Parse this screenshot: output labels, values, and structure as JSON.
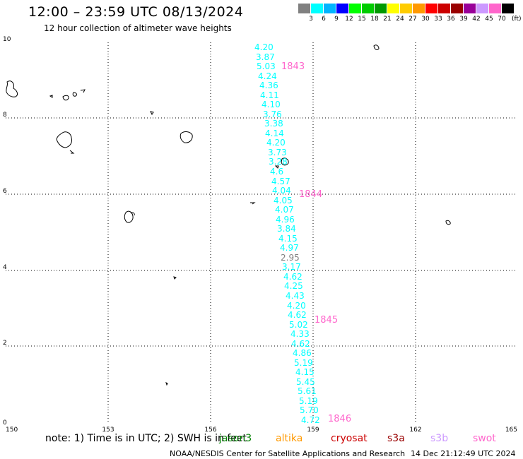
{
  "header": {
    "title": "12:00 – 23:59 UTC 08/13/2024",
    "subtitle": "12 hour collection of altimeter wave heights"
  },
  "colorbar": {
    "unit": "(ft)",
    "bins": [
      {
        "label": "3",
        "color": "#808080"
      },
      {
        "label": "6",
        "color": "#00ffff"
      },
      {
        "label": "9",
        "color": "#00b4ff"
      },
      {
        "label": "12",
        "color": "#0000ff"
      },
      {
        "label": "15",
        "color": "#00ff00"
      },
      {
        "label": "18",
        "color": "#00cc00"
      },
      {
        "label": "21",
        "color": "#009900"
      },
      {
        "label": "24",
        "color": "#ffff00"
      },
      {
        "label": "27",
        "color": "#ffcc00"
      },
      {
        "label": "30",
        "color": "#ff9900"
      },
      {
        "label": "33",
        "color": "#ff0000"
      },
      {
        "label": "36",
        "color": "#cc0000"
      },
      {
        "label": "39",
        "color": "#990000"
      },
      {
        "label": "42",
        "color": "#990099"
      },
      {
        "label": "45",
        "color": "#cc99ff"
      },
      {
        "label": "70",
        "color": "#ff66cc"
      },
      {
        "label": "",
        "color": "#000000"
      }
    ]
  },
  "axes": {
    "x_ticks": [
      "150",
      "153",
      "156",
      "159",
      "162",
      "165"
    ],
    "y_ticks": [
      "0",
      "2",
      "4",
      "6",
      "8",
      "10"
    ]
  },
  "track": {
    "measurement_color": "#00ffff",
    "low_color": "#808080",
    "time_color": "#ff66cc",
    "times": [
      "1843",
      "1844",
      "1845",
      "1846"
    ],
    "values": [
      "4.20",
      "3.87",
      "5.03",
      "4.24",
      "4.36",
      "4.11",
      "4.10",
      "3.76",
      "3.38",
      "4.14",
      "4.20",
      "3.73",
      "3.28",
      "4.6",
      "4.57",
      "4.04",
      "4.05",
      "4.07",
      "4.96",
      "3.84",
      "4.15",
      "4.97",
      "2.95",
      "3.17",
      "4.62",
      "4.25",
      "4.43",
      "4.20",
      "4.62",
      "5.02",
      "4.33",
      "4.62",
      "4.86",
      "5.19",
      "4.15",
      "5.45",
      "5.61",
      "5.19",
      "5.70",
      "4.72"
    ]
  },
  "footer": {
    "note": "note:  1) Time is in UTC; 2) SWH is in feet",
    "legend": [
      {
        "name": "jason3",
        "color": "#008000"
      },
      {
        "name": "altika",
        "color": "#ff9900"
      },
      {
        "name": "cryosat",
        "color": "#cc0000"
      },
      {
        "name": "s3a",
        "color": "#990000"
      },
      {
        "name": "s3b",
        "color": "#cc99ff"
      },
      {
        "name": "swot",
        "color": "#ff66cc"
      }
    ],
    "credit": "NOAA/NESDIS Center for Satellite Applications and Research",
    "generated": "14 Dec 21:12:49 UTC 2024"
  }
}
